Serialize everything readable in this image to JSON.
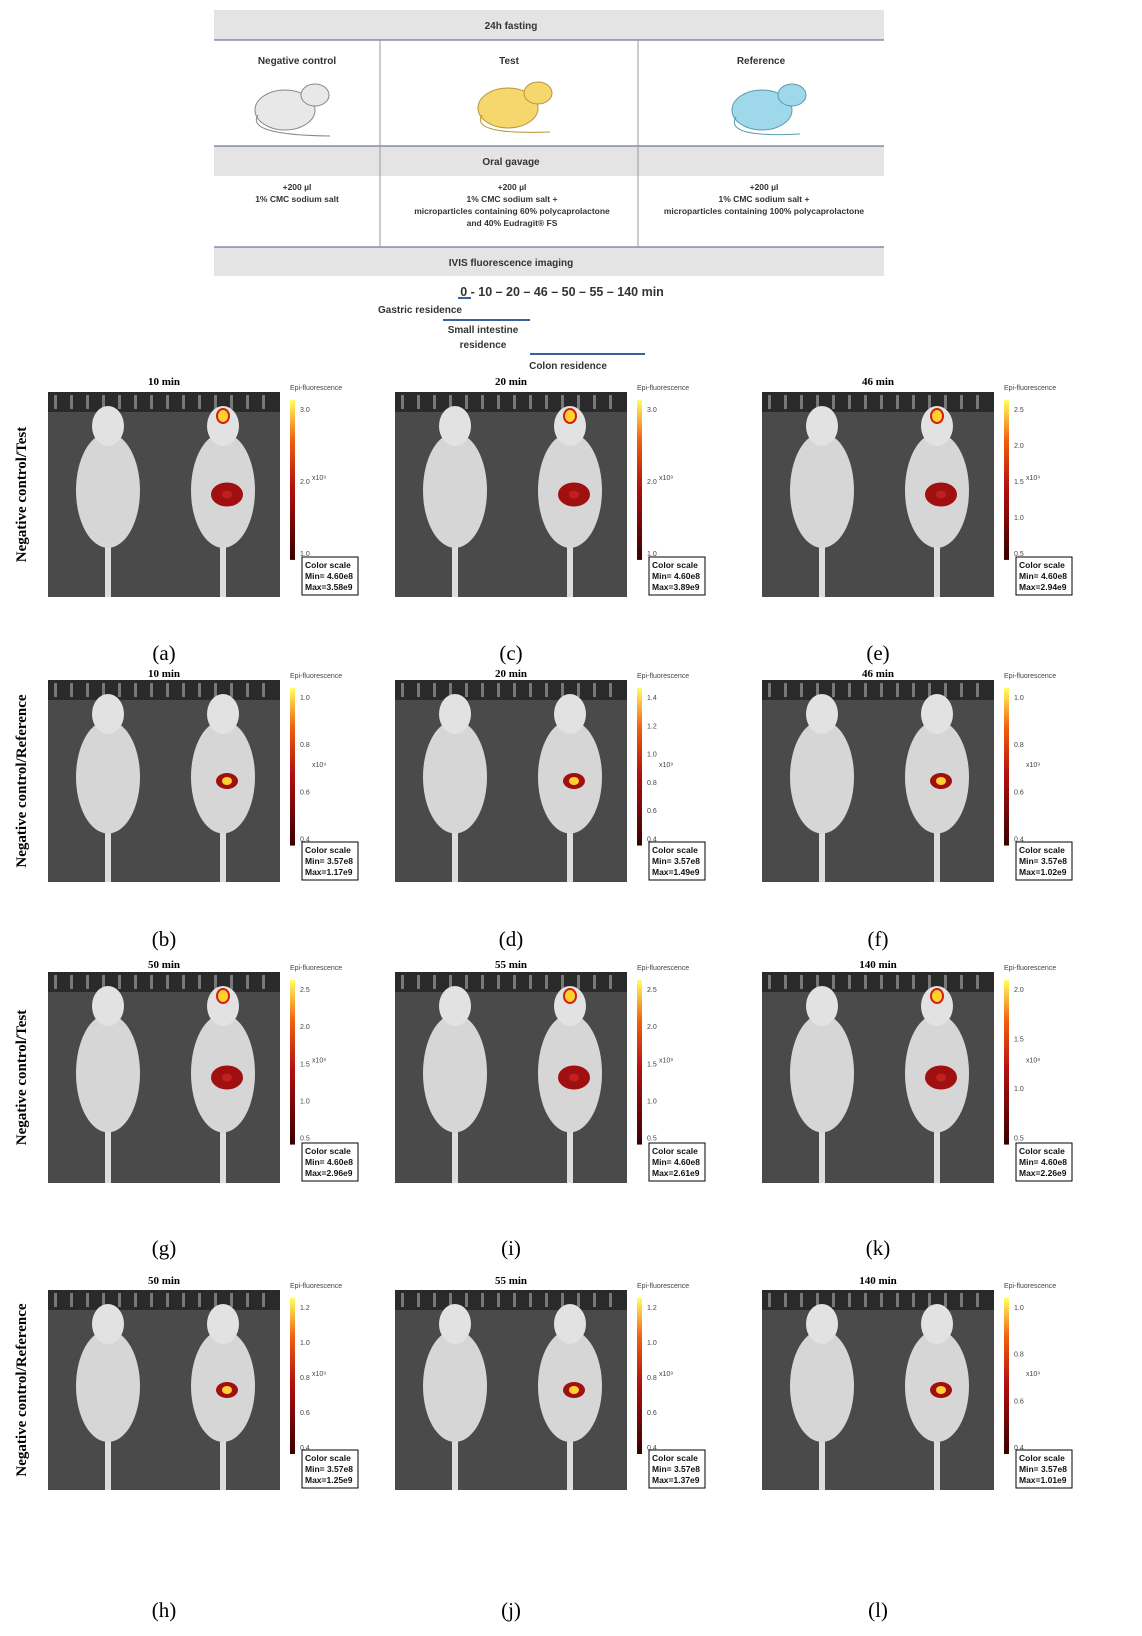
{
  "scheme": {
    "header": "24h fasting",
    "groups": [
      {
        "name": "Negative control",
        "dose": [
          "+200 µl",
          "1% CMC sodium salt"
        ]
      },
      {
        "name": "Test",
        "dose": [
          "+200 µl",
          "1% CMC sodium salt +",
          "microparticles containing 60% polycaprolactone",
          "and 40% Eudragit® FS"
        ]
      },
      {
        "name": "Reference",
        "dose": [
          "+200 µl",
          "1% CMC sodium salt +",
          "microparticles containing 100% polycaprolactone"
        ]
      }
    ],
    "gavage": "Oral gavage",
    "imaging": "IVIS fluorescence imaging",
    "timeline": "0 - 10 – 20 – 46 – 50 – 55 – 140 min",
    "phases": [
      [
        "Gastric residence"
      ],
      [
        "Small intestine",
        "residence"
      ],
      [
        "Colon residence"
      ]
    ]
  },
  "rows": [
    {
      "label": "Negative control/Test",
      "panels": [
        {
          "letter": "(a)",
          "time": "10 min",
          "colorbar_title": "Epi-fluorescence",
          "ticks": [
            "3.0",
            "2.0",
            "1.0"
          ],
          "exponent": "x10⁹",
          "scale_title": "Color scale",
          "min": "Min= 4.60e8",
          "max": "Max=3.58e9"
        },
        {
          "letter": "(c)",
          "time": "20 min",
          "colorbar_title": "Epi-fluorescence",
          "ticks": [
            "3.0",
            "2.0",
            "1.0"
          ],
          "exponent": "x10⁹",
          "scale_title": "Color scale",
          "min": "Min= 4.60e8",
          "max": "Max=3.89e9"
        },
        {
          "letter": "(e)",
          "time": "46 min",
          "colorbar_title": "Epi-fluorescence",
          "ticks": [
            "2.5",
            "2.0",
            "1.5",
            "1.0",
            "0.5"
          ],
          "exponent": "x10⁹",
          "scale_title": "Color scale",
          "min": "Min= 4.60e8",
          "max": "Max=2.94e9"
        }
      ]
    },
    {
      "label": "Negative control/Reference",
      "panels": [
        {
          "letter": "(b)",
          "time": "10 min",
          "colorbar_title": "Epi-fluorescence",
          "ticks": [
            "1.0",
            "0.8",
            "0.6",
            "0.4"
          ],
          "exponent": "x10⁹",
          "scale_title": "Color scale",
          "min": "Min= 3.57e8",
          "max": "Max=1.17e9"
        },
        {
          "letter": "(d)",
          "time": "20 min",
          "colorbar_title": "Epi-fluorescence",
          "ticks": [
            "1.4",
            "1.2",
            "1.0",
            "0.8",
            "0.6",
            "0.4"
          ],
          "exponent": "x10⁹",
          "scale_title": "Color scale",
          "min": "Min= 3.57e8",
          "max": "Max=1.49e9"
        },
        {
          "letter": "(f)",
          "time": "46 min",
          "colorbar_title": "Epi-fluorescence",
          "ticks": [
            "1.0",
            "0.8",
            "0.6",
            "0.4"
          ],
          "exponent": "x10⁹",
          "scale_title": "Color scale",
          "min": "Min= 3.57e8",
          "max": "Max=1.02e9"
        }
      ]
    },
    {
      "label": "Negative control/Test",
      "panels": [
        {
          "letter": "(g)",
          "time": "50 min",
          "colorbar_title": "Epi-fluorescence",
          "ticks": [
            "2.5",
            "2.0",
            "1.5",
            "1.0",
            "0.5"
          ],
          "exponent": "x10⁹",
          "scale_title": "Color scale",
          "min": "Min= 4.60e8",
          "max": "Max=2.96e9"
        },
        {
          "letter": "(i)",
          "time": "55 min",
          "colorbar_title": "Epi-fluorescence",
          "ticks": [
            "2.5",
            "2.0",
            "1.5",
            "1.0",
            "0.5"
          ],
          "exponent": "x10⁹",
          "scale_title": "Color scale",
          "min": "Min= 4.60e8",
          "max": "Max=2.61e9"
        },
        {
          "letter": "(k)",
          "time": "140 min",
          "colorbar_title": "Epi-fluorescence",
          "ticks": [
            "2.0",
            "1.5",
            "1.0",
            "0.5"
          ],
          "exponent": "x10⁹",
          "scale_title": "Color scale",
          "min": "Min= 4.60e8",
          "max": "Max=2.26e9"
        }
      ]
    },
    {
      "label": "Negative control/Reference",
      "panels": [
        {
          "letter": "(h)",
          "time": "50 min",
          "colorbar_title": "Epi-fluorescence",
          "ticks": [
            "1.2",
            "1.0",
            "0.8",
            "0.6",
            "0.4"
          ],
          "exponent": "x10⁹",
          "scale_title": "Color scale",
          "min": "Min= 3.57e8",
          "max": "Max=1.25e9"
        },
        {
          "letter": "(j)",
          "time": "55 min",
          "colorbar_title": "Epi-fluorescence",
          "ticks": [
            "1.2",
            "1.0",
            "0.8",
            "0.6",
            "0.4"
          ],
          "exponent": "x10⁹",
          "scale_title": "Color scale",
          "min": "Min= 3.57e8",
          "max": "Max=1.37e9"
        },
        {
          "letter": "(l)",
          "time": "140 min",
          "colorbar_title": "Epi-fluorescence",
          "ticks": [
            "1.0",
            "0.8",
            "0.6",
            "0.4"
          ],
          "exponent": "x10⁹",
          "scale_title": "Color scale",
          "min": "Min= 3.57e8",
          "max": "Max=1.01e9"
        }
      ]
    }
  ]
}
